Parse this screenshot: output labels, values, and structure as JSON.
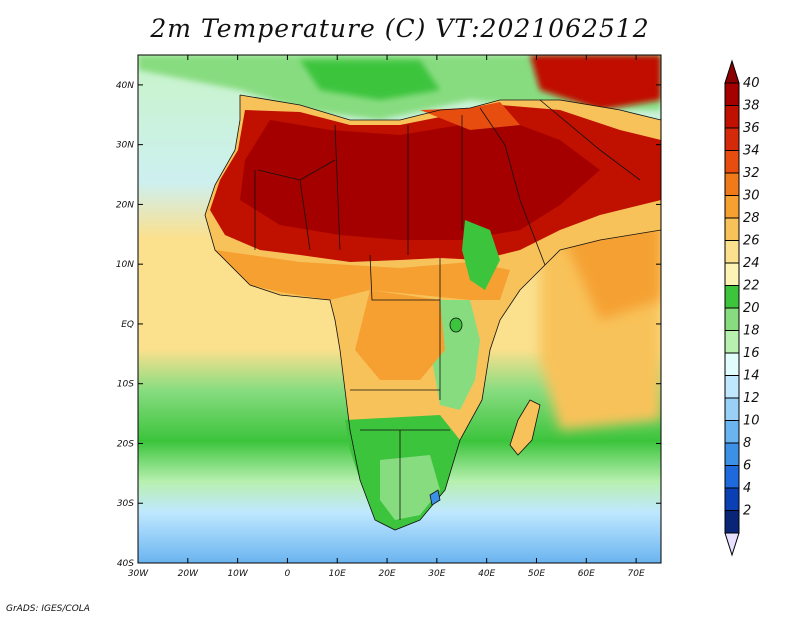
{
  "title": "2m Temperature (C) VT:2021062512",
  "credit": "GrADS: IGES/COLA",
  "map": {
    "lon_range": [
      -30,
      75
    ],
    "lat_range": [
      -40,
      45
    ],
    "lon_ticks": [
      {
        "value": -30,
        "label": "30W"
      },
      {
        "value": -20,
        "label": "20W"
      },
      {
        "value": -10,
        "label": "10W"
      },
      {
        "value": 0,
        "label": "0"
      },
      {
        "value": 10,
        "label": "10E"
      },
      {
        "value": 20,
        "label": "20E"
      },
      {
        "value": 30,
        "label": "30E"
      },
      {
        "value": 40,
        "label": "40E"
      },
      {
        "value": 50,
        "label": "50E"
      },
      {
        "value": 60,
        "label": "60E"
      },
      {
        "value": 70,
        "label": "70E"
      }
    ],
    "lat_ticks": [
      {
        "value": 40,
        "label": "40N"
      },
      {
        "value": 30,
        "label": "30N"
      },
      {
        "value": 20,
        "label": "20N"
      },
      {
        "value": 10,
        "label": "10N"
      },
      {
        "value": 0,
        "label": "EQ"
      },
      {
        "value": -10,
        "label": "10S"
      },
      {
        "value": -20,
        "label": "20S"
      },
      {
        "value": -30,
        "label": "30S"
      },
      {
        "value": -40,
        "label": "40S"
      }
    ]
  },
  "colorbar": {
    "labels": [
      "40",
      "38",
      "36",
      "34",
      "32",
      "30",
      "28",
      "26",
      "24",
      "22",
      "20",
      "18",
      "16",
      "14",
      "12",
      "10",
      "8",
      "6",
      "4",
      "2"
    ],
    "colors": [
      "#a50000",
      "#c01000",
      "#d52a0a",
      "#e84d10",
      "#f07a1a",
      "#f5a030",
      "#f8c25a",
      "#fbe08e",
      "#fdf3b4",
      "#3cc43c",
      "#88dc80",
      "#b8f0b0",
      "#e0fcfc",
      "#bfe8ff",
      "#98d0f8",
      "#6ab4f0",
      "#3c90e6",
      "#1e6adc",
      "#0a40b4",
      "#0a2478"
    ],
    "top_color": "#8b0000",
    "bottom_color": "#e8e0ff"
  }
}
